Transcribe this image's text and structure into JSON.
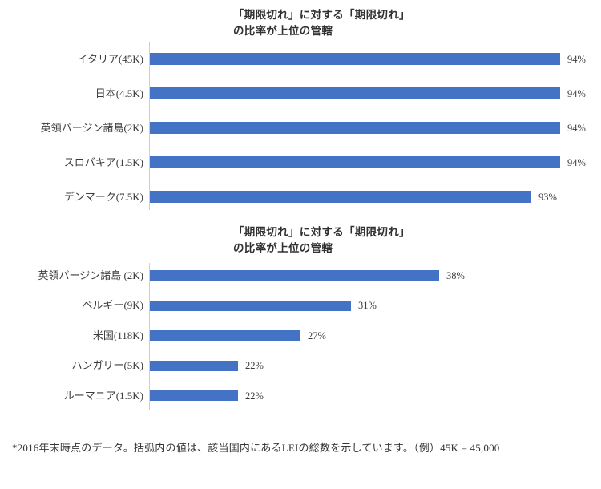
{
  "page": {
    "background_color": "#ffffff",
    "text_color": "#3c3c3c"
  },
  "footnote": "*2016年末時点のデータ。括弧内の値は、該当国内にあるLEIの総数を示しています。（例）45K = 45,000",
  "chart_data": [
    {
      "type": "bar",
      "orientation": "horizontal",
      "title": "「期限切れ」に対する「期限切れ」の比率が上位の管轄",
      "title_lines": [
        "「期限切れ」に対する「期限切れ」",
        "の比率が上位の管轄"
      ],
      "categories": [
        "イタリア(45K)",
        "日本(4.5K)",
        "英領バージン諸島(2K)",
        "スロバキア(1.5K)",
        "デンマーク(7.5K)"
      ],
      "values": [
        94,
        94,
        94,
        94,
        93
      ],
      "labels": [
        "94%",
        "94%",
        "94%",
        "94%",
        "93%"
      ],
      "xlabel": "",
      "ylabel": "",
      "xlim": [
        80,
        95
      ],
      "grid": false,
      "legend": false,
      "bar_color": "#4472C4",
      "axis_color": "#cfcfcf"
    },
    {
      "type": "bar",
      "orientation": "horizontal",
      "title": "「期限切れ」に対する「期限切れ」の比率が上位の管轄",
      "title_lines": [
        "「期限切れ」に対する「期限切れ」",
        "の比率が上位の管轄"
      ],
      "categories": [
        "英領バージン諸島 (2K)",
        "ベルギー(9K)",
        "米国(118K)",
        "ハンガリー(5K)",
        "ルーマニア(1.5K)"
      ],
      "values": [
        38,
        31,
        27,
        22,
        22
      ],
      "labels": [
        "38%",
        "31%",
        "27%",
        "22%",
        "22%"
      ],
      "xlabel": "",
      "ylabel": "",
      "xlim": [
        15,
        40
      ],
      "grid": false,
      "legend": false,
      "bar_color": "#4472C4",
      "axis_color": "#cfcfcf"
    }
  ]
}
